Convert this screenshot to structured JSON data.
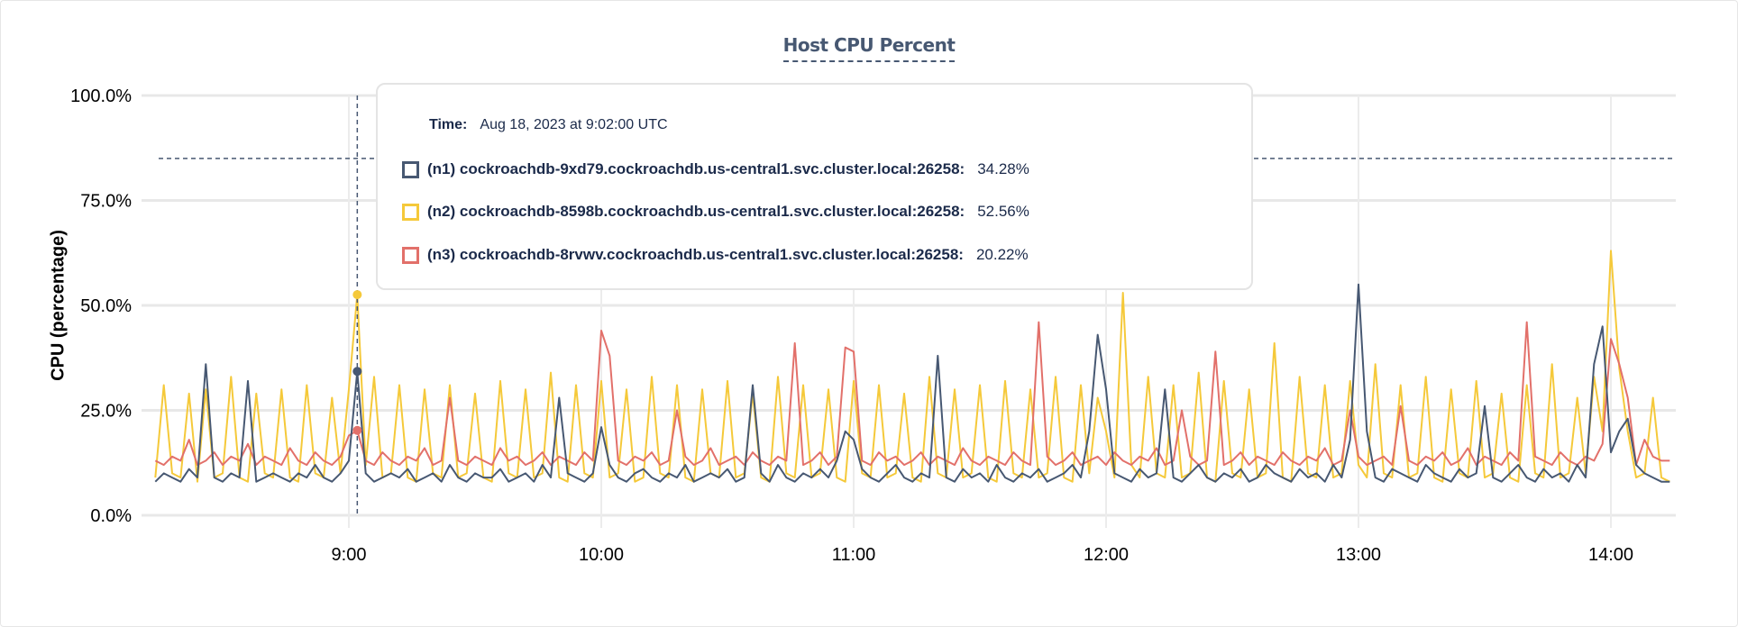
{
  "chart_data": {
    "type": "line",
    "title": "Host CPU Percent",
    "ylabel": "CPU (percentage)",
    "xlabel": "",
    "ylim": [
      0,
      100
    ],
    "y_ticks": [
      "0.0%",
      "25.0%",
      "50.0%",
      "75.0%",
      "100.0%"
    ],
    "y_tick_values": [
      0,
      25,
      50,
      75,
      100
    ],
    "x_ticks": [
      "9:00",
      "10:00",
      "11:00",
      "12:00",
      "13:00",
      "14:00"
    ],
    "x_range": [
      "08:14",
      "14:14"
    ],
    "interval_minutes": 2,
    "grid": true,
    "threshold": 85,
    "hover_time": "09:02",
    "series": [
      {
        "name": "(n1) cockroachdb-9xd79.cockroachdb.us-central1.svc.cluster.local:26258",
        "color": "#475872",
        "values": [
          8,
          10,
          9,
          8,
          11,
          9,
          36,
          9,
          8,
          10,
          9,
          32,
          8,
          9,
          10,
          9,
          8,
          10,
          9,
          12,
          9,
          8,
          10,
          13,
          34.28,
          10,
          8,
          9,
          10,
          9,
          11,
          8,
          9,
          10,
          8,
          12,
          9,
          8,
          10,
          9,
          9,
          11,
          8,
          9,
          10,
          8,
          12,
          9,
          28,
          10,
          9,
          8,
          10,
          21,
          12,
          9,
          8,
          10,
          11,
          9,
          8,
          10,
          9,
          12,
          8,
          9,
          10,
          9,
          11,
          8,
          9,
          31,
          10,
          8,
          12,
          9,
          8,
          10,
          9,
          11,
          9,
          13,
          20,
          18,
          11,
          9,
          8,
          10,
          12,
          9,
          8,
          10,
          9,
          38,
          9,
          8,
          11,
          9,
          10,
          8,
          12,
          9,
          8,
          10,
          9,
          11,
          8,
          9,
          10,
          12,
          9,
          20,
          43,
          30,
          10,
          9,
          8,
          11,
          9,
          10,
          30,
          9,
          8,
          10,
          12,
          9,
          8,
          10,
          9,
          11,
          8,
          9,
          12,
          10,
          9,
          8,
          11,
          9,
          10,
          8,
          12,
          9,
          18,
          55,
          20,
          9,
          8,
          11,
          10,
          9,
          8,
          12,
          10,
          9,
          8,
          11,
          9,
          10,
          26,
          9,
          8,
          10,
          12,
          9,
          8,
          11,
          9,
          10,
          8,
          12,
          9,
          36,
          45,
          15,
          20,
          23,
          12,
          10,
          9,
          8,
          8
        ]
      },
      {
        "name": "(n2) cockroachdb-8598b.cockroachdb.us-central1.svc.cluster.local:26258",
        "color": "#F5C93A",
        "values": [
          9,
          31,
          10,
          9,
          29,
          8,
          30,
          9,
          10,
          33,
          9,
          8,
          29,
          10,
          9,
          30,
          9,
          8,
          31,
          10,
          9,
          28,
          10,
          30,
          52.56,
          12,
          33,
          9,
          10,
          31,
          9,
          8,
          30,
          10,
          9,
          31,
          9,
          10,
          29,
          9,
          8,
          32,
          10,
          9,
          30,
          9,
          10,
          34,
          9,
          8,
          31,
          10,
          9,
          32,
          9,
          10,
          30,
          8,
          9,
          33,
          10,
          9,
          31,
          9,
          8,
          30,
          10,
          9,
          32,
          9,
          10,
          29,
          9,
          8,
          33,
          10,
          9,
          31,
          9,
          10,
          30,
          9,
          8,
          32,
          10,
          9,
          31,
          9,
          10,
          29,
          9,
          8,
          33,
          10,
          9,
          30,
          9,
          10,
          31,
          9,
          8,
          32,
          10,
          9,
          30,
          9,
          10,
          33,
          9,
          8,
          31,
          10,
          28,
          20,
          9,
          53,
          12,
          9,
          33,
          10,
          9,
          31,
          9,
          10,
          34,
          9,
          8,
          32,
          10,
          9,
          30,
          9,
          10,
          41,
          9,
          8,
          33,
          10,
          9,
          31,
          9,
          10,
          32,
          12,
          9,
          36,
          10,
          9,
          31,
          9,
          10,
          33,
          9,
          8,
          30,
          10,
          9,
          32,
          9,
          10,
          29,
          9,
          8,
          31,
          10,
          9,
          36,
          9,
          10,
          28,
          10,
          33,
          20,
          63,
          35,
          20,
          9,
          10,
          28,
          9,
          8
        ]
      },
      {
        "name": "(n3) cockroachdb-8rvwv.cockroachdb.us-central1.svc.cluster.local:26258",
        "color": "#E2706A",
        "values": [
          13,
          12,
          14,
          13,
          18,
          12,
          13,
          15,
          12,
          14,
          13,
          17,
          12,
          14,
          13,
          12,
          16,
          13,
          12,
          15,
          13,
          12,
          14,
          19,
          20.22,
          13,
          12,
          15,
          13,
          12,
          14,
          13,
          16,
          12,
          13,
          28,
          13,
          12,
          14,
          13,
          12,
          16,
          13,
          14,
          12,
          13,
          15,
          12,
          14,
          13,
          12,
          15,
          13,
          44,
          38,
          13,
          12,
          14,
          13,
          15,
          12,
          13,
          25,
          14,
          12,
          13,
          16,
          12,
          13,
          14,
          12,
          15,
          13,
          12,
          14,
          13,
          41,
          12,
          13,
          15,
          12,
          14,
          40,
          39,
          13,
          12,
          15,
          13,
          14,
          12,
          13,
          15,
          12,
          14,
          13,
          12,
          16,
          13,
          12,
          14,
          13,
          12,
          15,
          13,
          12,
          46,
          14,
          12,
          13,
          15,
          12,
          13,
          14,
          12,
          15,
          13,
          12,
          14,
          13,
          16,
          12,
          13,
          25,
          14,
          12,
          13,
          39,
          12,
          13,
          15,
          12,
          14,
          13,
          12,
          15,
          13,
          12,
          14,
          13,
          16,
          12,
          13,
          25,
          14,
          12,
          13,
          14,
          12,
          26,
          13,
          12,
          14,
          13,
          15,
          12,
          13,
          16,
          12,
          14,
          13,
          12,
          15,
          13,
          46,
          14,
          13,
          12,
          15,
          13,
          12,
          14,
          13,
          17,
          42,
          36,
          28,
          12,
          18,
          14,
          13,
          13
        ]
      }
    ]
  },
  "tooltip": {
    "time_label": "Time:",
    "time_value": "Aug 18, 2023 at 9:02:00 UTC",
    "rows": [
      {
        "name": "(n1) cockroachdb-9xd79.cockroachdb.us-central1.svc.cluster.local:26258:",
        "value": "34.28%",
        "color": "#475872"
      },
      {
        "name": "(n2) cockroachdb-8598b.cockroachdb.us-central1.svc.cluster.local:26258:",
        "value": "52.56%",
        "color": "#F5C93A"
      },
      {
        "name": "(n3) cockroachdb-8rvwv.cockroachdb.us-central1.svc.cluster.local:26258:",
        "value": "20.22%",
        "color": "#E2706A"
      }
    ]
  }
}
